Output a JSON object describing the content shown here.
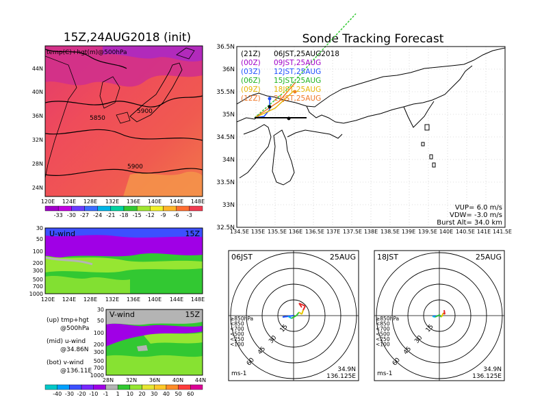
{
  "left": {
    "title": "15Z,24AUG2018 (init)",
    "map_label": "temp(C)+hgt(m)@500hPa",
    "lat_ticks": [
      "44N",
      "40N",
      "36N",
      "32N",
      "28N",
      "24N"
    ],
    "lon_ticks": [
      "120E",
      "124E",
      "128E",
      "132E",
      "136E",
      "140E",
      "144E",
      "148E"
    ],
    "height_contours": [
      "5850",
      "5900",
      "5900"
    ],
    "temp_colorbar": {
      "labels": [
        "-33",
        "-30",
        "-27",
        "-24",
        "-21",
        "-18",
        "-15",
        "-12",
        "-9",
        "-6",
        "-3"
      ],
      "colors": [
        "#a000c8",
        "#c000e0",
        "#6a3cff",
        "#3c6cff",
        "#00b4e6",
        "#00d2a0",
        "#32c832",
        "#a0e632",
        "#f0f028",
        "#ffb428",
        "#ff6e32",
        "#f03c50"
      ]
    },
    "uwind": {
      "label": "U-wind",
      "time": "15Z",
      "p_ticks": [
        "30",
        "50",
        "100",
        "200",
        "300",
        "500",
        "700",
        "1000"
      ],
      "lon_ticks": [
        "120E",
        "124E",
        "128E",
        "132E",
        "136E",
        "140E",
        "144E",
        "148E"
      ]
    },
    "vwind": {
      "label": "V-wind",
      "time": "15Z",
      "p_ticks": [
        "30",
        "50",
        "100",
        "200",
        "300",
        "500",
        "700",
        "1000"
      ],
      "lat_ticks": [
        "28N",
        "32N",
        "36N",
        "40N",
        "44N"
      ]
    },
    "legend": {
      "up1": "(up) tmp+hgt",
      "up2": "@500hPa",
      "mid1": "(mid) u-wind",
      "mid2": "@34.86N",
      "bot1": "(bot) v-wind",
      "bot2": "@136.11E"
    },
    "wind_colorbar": {
      "labels": [
        "-40",
        "-30",
        "-20",
        "-10",
        "-1",
        "1",
        "10",
        "20",
        "30",
        "40",
        "50",
        "60"
      ],
      "colors": [
        "#00c8c8",
        "#00a0ff",
        "#3c50ff",
        "#7828ff",
        "#a000e6",
        "#b4b4b4",
        "#32c832",
        "#96e632",
        "#e6e632",
        "#ffc828",
        "#ff8c28",
        "#ff3c3c",
        "#dc0096"
      ]
    }
  },
  "right": {
    "title": "Sonde Tracking Forecast",
    "lat_ticks": [
      "36.5N",
      "36N",
      "35.5N",
      "35N",
      "34.5N",
      "34N",
      "33.5N",
      "33N",
      "32.5N"
    ],
    "lon_ticks": [
      "134.5E",
      "135E",
      "135.5E",
      "136E",
      "136.5E",
      "137E",
      "137.5E",
      "138E",
      "138.5E",
      "139E",
      "139.5E",
      "140E",
      "140.5E",
      "141E",
      "141.5E"
    ],
    "launch_lines": [
      {
        "left": "(21Z)",
        "right": "06JST,25AUG2018",
        "color": "#000000"
      },
      {
        "left": "(00Z)",
        "right": "09JST,25AUG",
        "color": "#a000c8"
      },
      {
        "left": "(03Z)",
        "right": "12JST,25AUG",
        "color": "#1e50ff"
      },
      {
        "left": "(06Z)",
        "right": "15JST,25AUG",
        "color": "#1eb41e"
      },
      {
        "left": "(09Z)",
        "right": "18JST,25AUG",
        "color": "#e6b400"
      },
      {
        "left": "(12Z)",
        "right": "21JST,25AUG",
        "color": "#f07828"
      }
    ],
    "params": {
      "vup": "VUP= 6.0 m/s",
      "vdw": "VDW= -3.0 m/s",
      "burst": "Burst Alt= 34.0 km"
    }
  },
  "hodographs": [
    {
      "time": "06JST",
      "date": "25AUG",
      "lat": "34.9N",
      "lon": "136.125E",
      "unit": "ms-1"
    },
    {
      "time": "18JST",
      "date": "25AUG",
      "lat": "34.9N",
      "lon": "136.125E",
      "unit": "ms-1"
    }
  ],
  "hodo_rings": [
    "15",
    "30",
    "45",
    "60"
  ],
  "hodo_levels": [
    {
      "label": "≥850hPa",
      "color": "#e62828"
    },
    {
      "label": "<850",
      "color": "#ff8c28"
    },
    {
      "label": "<700",
      "color": "#e6c800"
    },
    {
      "label": "<500",
      "color": "#32c832"
    },
    {
      "label": "<250",
      "color": "#00b4e6"
    },
    {
      "label": "<100",
      "color": "#1e50ff"
    }
  ]
}
